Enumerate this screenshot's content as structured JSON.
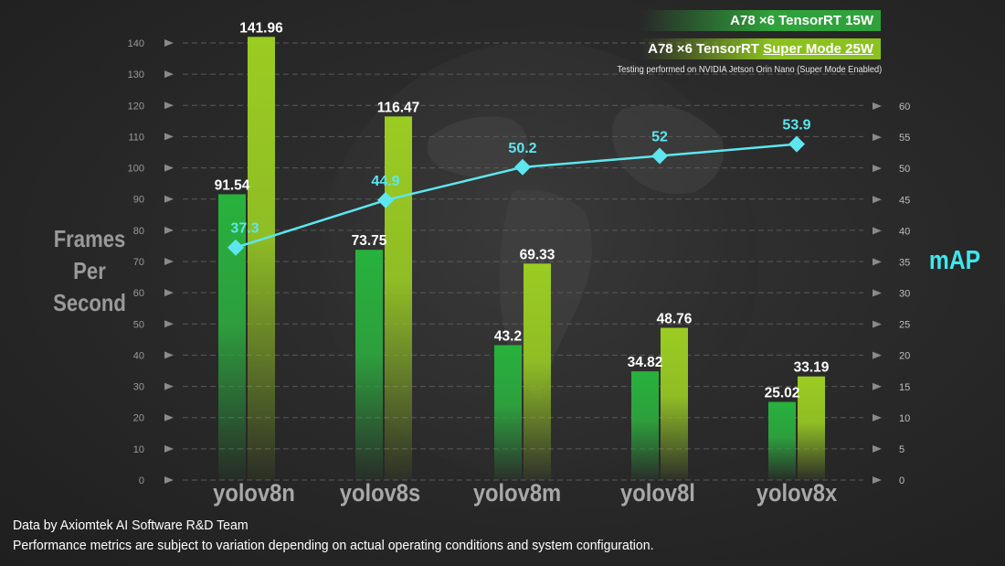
{
  "legend": {
    "series1": "A78 ×6 TensorRT 15W",
    "series2_prefix": "A78 ×6 TensorRT ",
    "series2_highlight": "Super Mode 25W",
    "note": "Testing performed on NVIDIA Jetson Orin Nano (Super Mode Enabled)"
  },
  "axes": {
    "left_label": [
      "Frames",
      "Per",
      "Second"
    ],
    "right_label": "mAP"
  },
  "footer": {
    "line1": "Data by Axiomtek AI Software R&D Team",
    "line2": "Performance metrics are subject to variation depending on actual operating conditions and system configuration."
  },
  "colors": {
    "bar15w": "#2db441",
    "bar25w": "#9acb23",
    "map_line": "#5ee6ef",
    "grid": "#5a5a5a"
  },
  "chart_data": {
    "type": "bar",
    "categories": [
      "yolov8n",
      "yolov8s",
      "yolov8m",
      "yolov8l",
      "yolov8x"
    ],
    "series": [
      {
        "name": "A78 ×6 TensorRT 15W",
        "values": [
          91.54,
          73.75,
          43.2,
          34.82,
          25.02
        ]
      },
      {
        "name": "A78 ×6 TensorRT Super Mode 25W",
        "values": [
          141.96,
          116.47,
          69.33,
          48.76,
          33.19
        ]
      }
    ],
    "line_series": {
      "type": "line",
      "axis": "right",
      "values": [
        37.3,
        44.9,
        50.2,
        52,
        53.9
      ]
    },
    "ylabel": "Frames Per Second",
    "y2label": "mAP",
    "ylim": [
      0,
      140
    ],
    "y2lim": [
      0,
      60
    ],
    "yticks": [
      0,
      10,
      20,
      30,
      40,
      50,
      60,
      70,
      80,
      90,
      100,
      110,
      120,
      130,
      140
    ],
    "y2ticks": [
      0,
      5,
      10,
      15,
      20,
      25,
      30,
      35,
      40,
      45,
      50,
      55,
      60
    ],
    "grid": true,
    "legend_position": "top-right"
  }
}
